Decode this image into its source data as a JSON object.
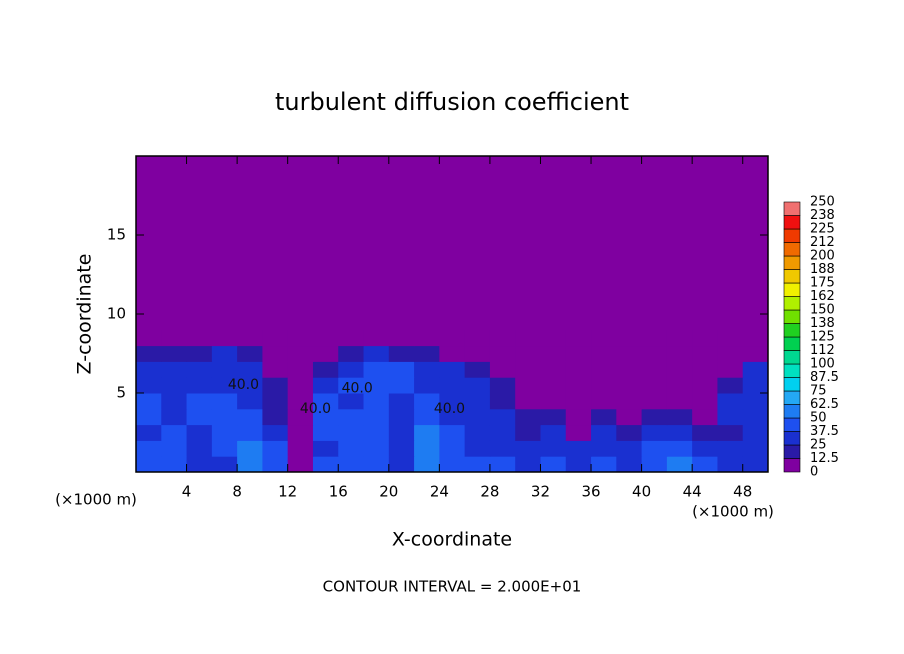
{
  "chart_data": {
    "type": "contour",
    "title": "turbulent diffusion coefficient",
    "xlabel": "X-coordinate",
    "ylabel": "Z-coordinate",
    "x_unit": "(×1000 m)",
    "footer": "CONTOUR INTERVAL = 2.000E+01",
    "xlim": [
      0,
      50
    ],
    "ylim": [
      0,
      20
    ],
    "xticks": [
      4,
      8,
      12,
      16,
      20,
      24,
      28,
      32,
      36,
      40,
      44,
      48
    ],
    "yticks": [
      5,
      10,
      15
    ],
    "field": {
      "x_edges": [
        0,
        2,
        4,
        6,
        8,
        10,
        12,
        14,
        16,
        18,
        20,
        22,
        24,
        26,
        28,
        30,
        32,
        34,
        36,
        38,
        40,
        42,
        44,
        46,
        48,
        50
      ],
      "z_edges": [
        0,
        1,
        2,
        3,
        4,
        5,
        6,
        7,
        8,
        9
      ],
      "values": [
        [
          40,
          45,
          35,
          30,
          50,
          45,
          10,
          40,
          45,
          40,
          35,
          50,
          45,
          40,
          40,
          30,
          45,
          35,
          40,
          30,
          45,
          50,
          40,
          35,
          30
        ],
        [
          40,
          40,
          30,
          45,
          55,
          40,
          5,
          35,
          40,
          40,
          30,
          55,
          40,
          35,
          35,
          25,
          35,
          30,
          35,
          25,
          40,
          45,
          35,
          30,
          35
        ],
        [
          35,
          40,
          35,
          40,
          45,
          35,
          5,
          40,
          45,
          45,
          30,
          50,
          40,
          30,
          30,
          20,
          25,
          10,
          30,
          20,
          35,
          30,
          20,
          15,
          30
        ],
        [
          40,
          35,
          40,
          45,
          40,
          20,
          5,
          45,
          40,
          40,
          35,
          45,
          35,
          30,
          25,
          15,
          20,
          10,
          15,
          10,
          20,
          15,
          10,
          25,
          30
        ],
        [
          40,
          35,
          40,
          40,
          35,
          20,
          5,
          40,
          35,
          45,
          30,
          40,
          35,
          35,
          20,
          10,
          10,
          5,
          10,
          5,
          10,
          5,
          5,
          25,
          35
        ],
        [
          35,
          35,
          35,
          35,
          30,
          15,
          5,
          30,
          40,
          45,
          40,
          35,
          35,
          30,
          15,
          5,
          5,
          0,
          5,
          0,
          5,
          0,
          5,
          15,
          35
        ],
        [
          30,
          30,
          35,
          30,
          25,
          10,
          0,
          20,
          35,
          40,
          40,
          35,
          35,
          20,
          5,
          0,
          0,
          0,
          0,
          0,
          0,
          0,
          0,
          5,
          30
        ],
        [
          15,
          20,
          20,
          25,
          15,
          0,
          0,
          5,
          20,
          30,
          20,
          15,
          10,
          5,
          0,
          0,
          0,
          0,
          0,
          0,
          0,
          0,
          0,
          0,
          10
        ],
        [
          0,
          0,
          5,
          10,
          5,
          0,
          0,
          0,
          5,
          10,
          0,
          0,
          0,
          0,
          0,
          0,
          0,
          0,
          0,
          0,
          0,
          0,
          0,
          0,
          0
        ]
      ]
    },
    "background_value": 0,
    "contour_labels": [
      {
        "text": "40.0",
        "x": 8.5,
        "y": 5.5
      },
      {
        "text": "40.0",
        "x": 14.2,
        "y": 4.0
      },
      {
        "text": "40.0",
        "x": 17.5,
        "y": 5.3
      },
      {
        "text": "40.0",
        "x": 24.8,
        "y": 4.0
      }
    ],
    "colorbar": {
      "levels": [
        0,
        {
          "value": 12.5,
          "label": "12.5"
        },
        25,
        {
          "value": 37.5,
          "label": "37.5"
        },
        50,
        {
          "value": 62.5,
          "label": "62.5"
        },
        75,
        {
          "value": 87.5,
          "label": "87.5"
        },
        100,
        112,
        125,
        138,
        150,
        162,
        175,
        188,
        200,
        212,
        225,
        238,
        250
      ],
      "colors": [
        "#7f00a0",
        "#2a1aa6",
        "#1a30d0",
        "#1e50f0",
        "#1e7cf2",
        "#24a8f4",
        "#00d0f0",
        "#00e0c0",
        "#00d890",
        "#00d050",
        "#20d020",
        "#70e000",
        "#b0f000",
        "#f0f000",
        "#f0c800",
        "#f09a00",
        "#f06a00",
        "#f03a00",
        "#f01010",
        "#f07070"
      ]
    }
  }
}
